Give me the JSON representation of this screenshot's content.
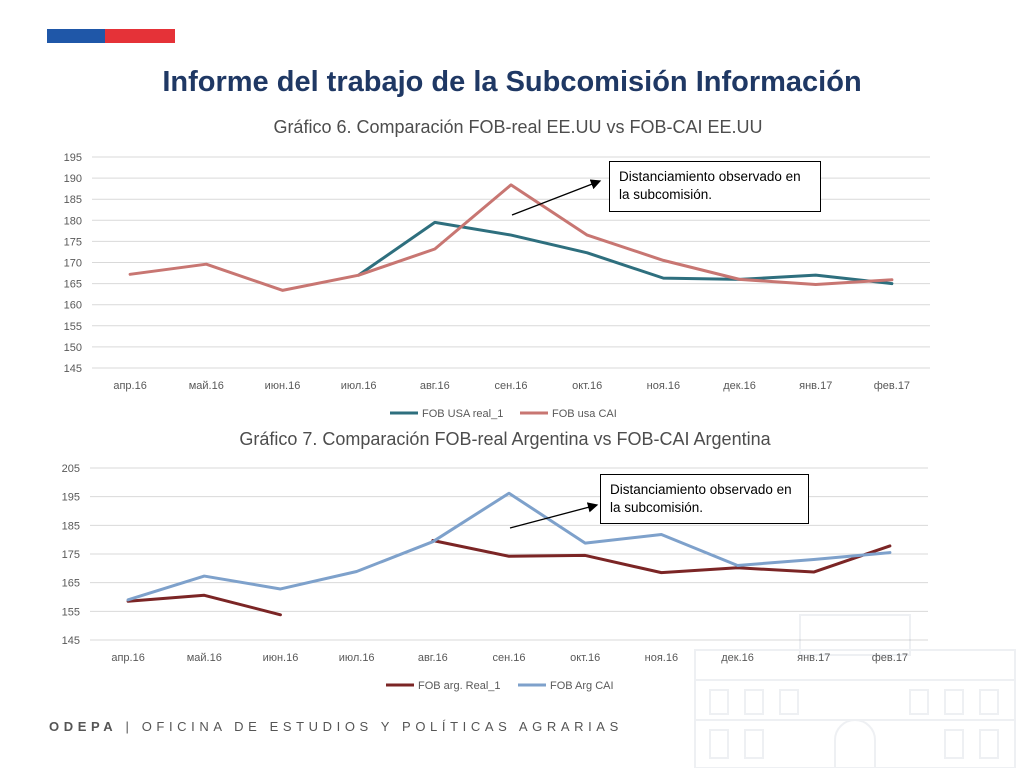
{
  "slide": {
    "title": "Informe del trabajo de la Subcomisión Información",
    "footer_brand": "ODEPA",
    "footer_sep": "|",
    "footer_text": "OFICINA DE ESTUDIOS Y POLÍTICAS AGRARIAS"
  },
  "colors": {
    "flag_blue": "#1f57a8",
    "flag_red": "#e53238",
    "title": "#1f3864"
  },
  "chart_data": [
    {
      "type": "line",
      "title": "Gráfico 6. Comparación FOB-real EE.UU  vs FOB-CAI EE.UU",
      "categories": [
        "апр.16",
        "май.16",
        "июн.16",
        "июл.16",
        "авг.16",
        "сен.16",
        "окт.16",
        "ноя.16",
        "дек.16",
        "янв.17",
        "фев.17"
      ],
      "ylim": [
        145,
        195
      ],
      "yticks": [
        145,
        150,
        155,
        160,
        165,
        170,
        175,
        180,
        185,
        190,
        195
      ],
      "grid": true,
      "legend_position": "bottom",
      "series": [
        {
          "name": "FOB USA real_1",
          "color": "#2e6f7e",
          "values": [
            null,
            null,
            null,
            167,
            179.5,
            176.5,
            172.3,
            166.3,
            166,
            167,
            165
          ]
        },
        {
          "name": "FOB usa CAI",
          "color": "#c87672",
          "values": [
            167.2,
            169.6,
            163.4,
            167,
            173.2,
            188.4,
            176.5,
            170.5,
            166,
            164.8,
            165.9
          ]
        }
      ],
      "annotation": "Distanciamiento observado en la subcomisión."
    },
    {
      "type": "line",
      "title": "Gráfico 7. Comparación FOB-real Argentina  vs FOB-CAI Argentina",
      "categories": [
        "апр.16",
        "май.16",
        "июн.16",
        "июл.16",
        "авг.16",
        "сен.16",
        "окт.16",
        "ноя.16",
        "дек.16",
        "янв.17",
        "фев.17"
      ],
      "ylim": [
        145,
        205
      ],
      "yticks": [
        145,
        155,
        165,
        175,
        185,
        195,
        205
      ],
      "grid": true,
      "legend_position": "bottom",
      "series": [
        {
          "name": "FOB arg. Real_1",
          "color": "#7b2525",
          "values": [
            158.5,
            160.6,
            153.8,
            null,
            179.7,
            174.2,
            174.5,
            168.5,
            170.2,
            168.7,
            177.8
          ]
        },
        {
          "name": "FOB Arg  CAI",
          "color": "#7ea1cb",
          "values": [
            159,
            167.3,
            162.8,
            168.9,
            179.3,
            196.2,
            178.8,
            181.8,
            171,
            173.1,
            175.5
          ]
        }
      ],
      "annotation": "Distanciamiento observado en la subcomisión."
    }
  ]
}
